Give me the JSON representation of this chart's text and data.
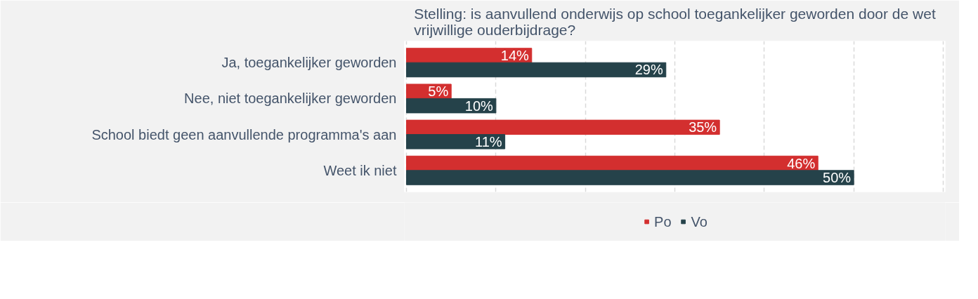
{
  "chart_data": {
    "type": "bar",
    "orientation": "horizontal",
    "title": "Stelling: is aanvullend onderwijs op school toegankelijker geworden door de wet\nvrijwillige ouderbijdrage?",
    "categories": [
      "Ja, toegankelijker geworden",
      "Nee, niet toegankelijker geworden",
      "School biedt geen aanvullende programma's aan",
      "Weet ik niet"
    ],
    "series": [
      {
        "name": "Po",
        "color": "#d32f2f",
        "values": [
          14,
          5,
          35,
          46
        ],
        "value_labels": [
          "14%",
          "5%",
          "35%",
          "46%"
        ]
      },
      {
        "name": "Vo",
        "color": "#25424a",
        "values": [
          29,
          10,
          11,
          50
        ],
        "value_labels": [
          "29%",
          "10%",
          "11%",
          "50%"
        ]
      }
    ],
    "xlim": [
      0,
      60
    ],
    "xticks": [
      {
        "value": 0,
        "label": null
      },
      {
        "value": 10,
        "label": null
      },
      {
        "value": 20,
        "label": null
      },
      {
        "value": 30,
        "label": null
      },
      {
        "value": 40,
        "label": null
      },
      {
        "value": 50,
        "label": null
      },
      {
        "value": 60,
        "label": null
      }
    ],
    "grid": "x",
    "legend": "bottom",
    "tick_labels": "y"
  }
}
